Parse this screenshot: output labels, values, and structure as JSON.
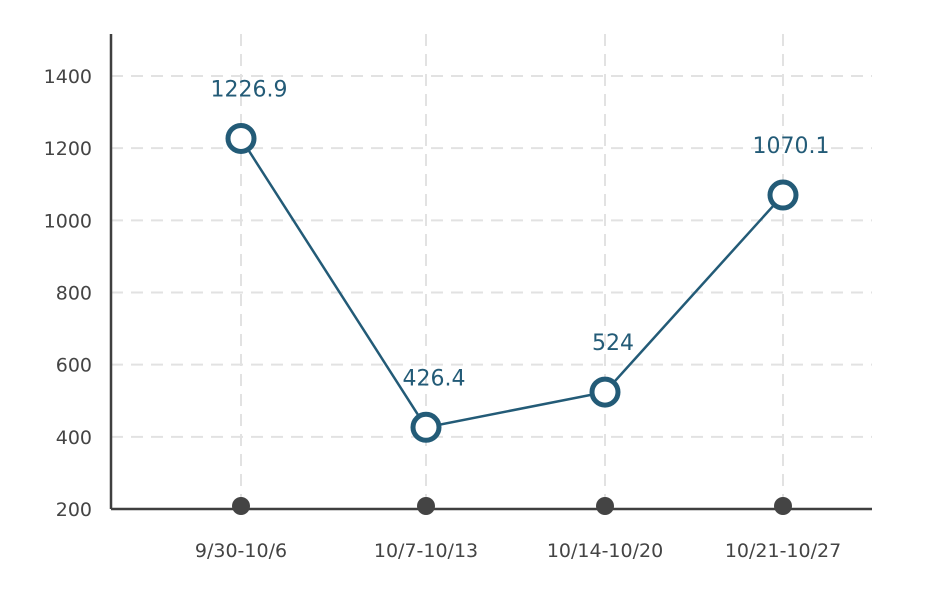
{
  "chart_data": {
    "type": "line",
    "title": "",
    "xlabel": "",
    "ylabel": "",
    "categories": [
      "9/30-10/6",
      "10/7-10/13",
      "10/14-10/20",
      "10/21-10/27"
    ],
    "series": [
      {
        "values": [
          1226.9,
          426.4,
          524,
          1070.1
        ],
        "data_labels": [
          "1226.9",
          "426.4",
          "524",
          "1070.1"
        ]
      }
    ],
    "ylim": [
      200,
      1500
    ],
    "yticks": [
      200,
      400,
      600,
      800,
      1000,
      1200,
      1400
    ],
    "grid": true,
    "legend": "none",
    "colors": {
      "series": "#235b77",
      "axis": "#3f3f3f",
      "grid": "#e2e2e2",
      "tick_dot": "#444444"
    }
  }
}
